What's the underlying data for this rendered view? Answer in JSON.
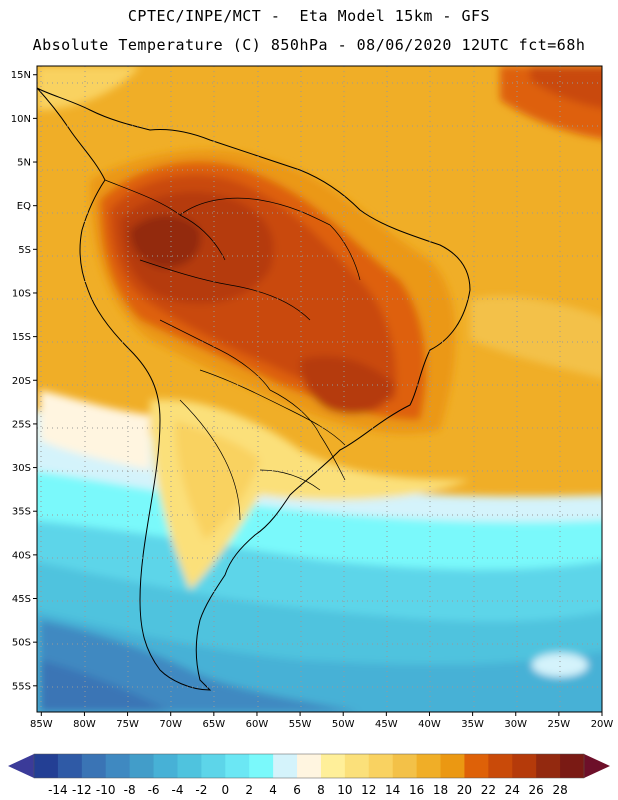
{
  "header": {
    "title_line1": "CPTEC/INPE/MCT -  Eta Model 15km - GFS",
    "title_line2": "Absolute Temperature (C) 850hPa - 08/06/2020 12UTC fct=68h"
  },
  "map": {
    "region": "South America",
    "lat_ticks": [
      "15N",
      "10N",
      "5N",
      "EQ",
      "5S",
      "10S",
      "15S",
      "20S",
      "25S",
      "30S",
      "35S",
      "40S",
      "45S",
      "50S",
      "55S"
    ],
    "lon_ticks": [
      "85W",
      "80W",
      "75W",
      "70W",
      "65W",
      "60W",
      "55W",
      "50W",
      "45W",
      "40W",
      "35W",
      "30W",
      "25W",
      "20W"
    ],
    "lat_range": [
      -58,
      16
    ],
    "lon_range": [
      -85.5,
      -20
    ]
  },
  "colorbar": {
    "labels": [
      "-14",
      "-12",
      "-10",
      "-8",
      "-6",
      "-4",
      "-2",
      "0",
      "2",
      "4",
      "6",
      "8",
      "10",
      "12",
      "14",
      "16",
      "18",
      "20",
      "22",
      "24",
      "26",
      "28"
    ],
    "colors": [
      "#233f94",
      "#2f5aa6",
      "#3a74b5",
      "#3f89c1",
      "#429dc9",
      "#47b1d6",
      "#4fc3de",
      "#5dd5e9",
      "#6be7f4",
      "#7af9fb",
      "#d4f3fb",
      "#fff5e0",
      "#ffef99",
      "#fbe07a",
      "#f9d261",
      "#f3c148",
      "#f0ae27",
      "#eb9812",
      "#de6108",
      "#c94a09",
      "#b53a0a",
      "#93290f",
      "#7a1a14"
    ],
    "under_color": "#3b3b99",
    "over_color": "#6d0f29"
  }
}
